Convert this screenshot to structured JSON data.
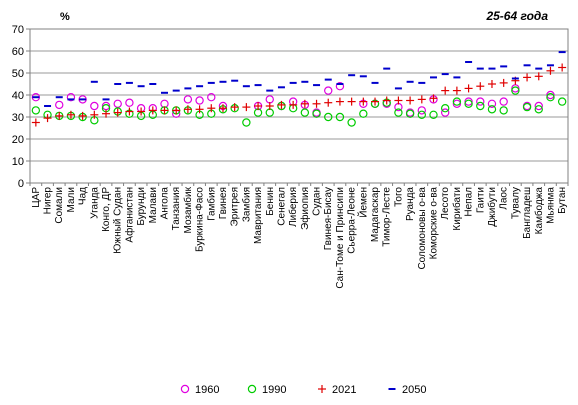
{
  "chart_data": {
    "type": "scatter",
    "title": "25-64 года",
    "ylabel": "%",
    "ylim": [
      0,
      70
    ],
    "yticks": [
      0,
      10,
      20,
      30,
      40,
      50,
      60,
      70
    ],
    "grid": true,
    "legend_position": "bottom",
    "categories": [
      "ЦАР",
      "Нигер",
      "Сомали",
      "Мали",
      "Чад",
      "Уганда",
      "Конго, ДР",
      "Южный Судан",
      "Афганистан",
      "Бурунди",
      "Малави",
      "Ангола",
      "Танзания",
      "Мозамбик",
      "Буркина-Фасо",
      "Гамбия",
      "Гвинея",
      "Эритрея",
      "Замбия",
      "Мавритания",
      "Бенин",
      "Сенегал",
      "Либерия",
      "Эфиопия",
      "Судан",
      "Гвинея-Бисау",
      "Сан-Томе и Принсипи",
      "Сьерра-Леоне",
      "Йемен",
      "Мадагаскар",
      "Тимор-Лесте",
      "Того",
      "Руанда",
      "Соломоновы о-ва",
      "Коморские о-ва",
      "Лесото",
      "Кирибати",
      "Непал",
      "Гаити",
      "Джибути",
      "Лаос",
      "Тувалу",
      "Бангладеш",
      "Камбоджа",
      "Мьянма",
      "Бутан"
    ],
    "series": [
      {
        "name": "1960",
        "marker": "circle-open",
        "color": "#e000e0",
        "values": [
          39,
          null,
          35.5,
          39,
          38,
          35,
          35,
          36,
          36.5,
          34,
          34,
          36,
          31.5,
          38,
          37.5,
          39,
          35,
          null,
          null,
          35,
          38,
          35,
          37,
          35.5,
          32,
          42,
          44,
          null,
          36,
          36,
          36,
          34.5,
          32,
          33,
          38,
          32,
          36,
          37,
          37,
          36,
          37,
          43,
          35,
          35,
          40,
          null
        ]
      },
      {
        "name": "1990",
        "marker": "circle-open",
        "color": "#00cc00",
        "values": [
          33,
          31,
          30.5,
          30.5,
          30,
          28.5,
          34,
          32.5,
          31.5,
          30.5,
          31,
          33,
          33,
          33,
          31,
          31.5,
          33.5,
          34,
          27.5,
          32,
          32,
          35,
          34,
          32,
          31.5,
          30,
          30,
          27.5,
          31.5,
          36,
          36.5,
          32,
          31.5,
          31,
          31,
          34,
          37,
          36,
          35,
          33.5,
          33,
          42,
          34.5,
          33.5,
          39,
          37
        ]
      },
      {
        "name": "2021",
        "marker": "plus",
        "color": "#e00000",
        "values": [
          27.5,
          29.5,
          30.5,
          31,
          30.5,
          31,
          31.5,
          32,
          32.5,
          32.5,
          33,
          33,
          33,
          33.5,
          33.5,
          34,
          34,
          34.5,
          34.5,
          35,
          35,
          35.5,
          35.5,
          36,
          36,
          36.5,
          37,
          37,
          37,
          37,
          37.5,
          37.5,
          37.5,
          38,
          38.5,
          42,
          42,
          43,
          44,
          45,
          45.5,
          46.5,
          48,
          48.5,
          51,
          52.5
        ]
      },
      {
        "name": "2050",
        "marker": "dash",
        "color": "#0000cc",
        "values": [
          39,
          35,
          39,
          38,
          38,
          46,
          38,
          45,
          45.5,
          44,
          45,
          41,
          42,
          43,
          44,
          45.5,
          46,
          46.5,
          44,
          44.5,
          42,
          43.5,
          45.5,
          46,
          44.5,
          47,
          45,
          49,
          48.5,
          45.5,
          52,
          43,
          46,
          45.5,
          48,
          49.5,
          48,
          55,
          52,
          52,
          53,
          47.5,
          53.5,
          52,
          53.5,
          59.5
        ]
      }
    ]
  }
}
